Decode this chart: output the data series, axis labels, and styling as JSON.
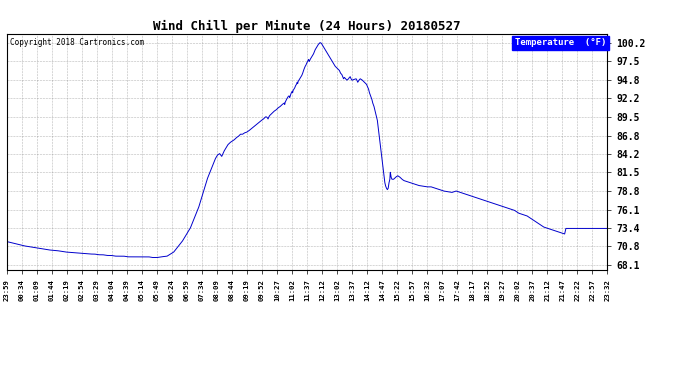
{
  "title": "Wind Chill per Minute (24 Hours) 20180527",
  "copyright": "Copyright 2018 Cartronics.com",
  "legend_label": "Temperature  (°F)",
  "line_color": "#0000cc",
  "background_color": "#ffffff",
  "grid_color": "#888888",
  "yticks": [
    68.1,
    70.8,
    73.4,
    76.1,
    78.8,
    81.5,
    84.2,
    86.8,
    89.5,
    92.2,
    94.8,
    97.5,
    100.2
  ],
  "ylim": [
    67.4,
    101.5
  ],
  "xtick_labels": [
    "23:59",
    "00:34",
    "01:09",
    "01:44",
    "02:19",
    "02:54",
    "03:29",
    "04:04",
    "04:39",
    "05:14",
    "05:49",
    "06:24",
    "06:59",
    "07:34",
    "08:09",
    "08:44",
    "09:19",
    "09:52",
    "10:27",
    "11:02",
    "11:37",
    "12:12",
    "13:02",
    "13:37",
    "14:12",
    "14:47",
    "15:22",
    "15:57",
    "16:32",
    "17:07",
    "17:42",
    "18:17",
    "18:52",
    "19:27",
    "20:02",
    "20:37",
    "21:12",
    "21:47",
    "22:22",
    "22:57",
    "23:32"
  ],
  "figwidth": 6.9,
  "figheight": 3.75,
  "dpi": 100
}
